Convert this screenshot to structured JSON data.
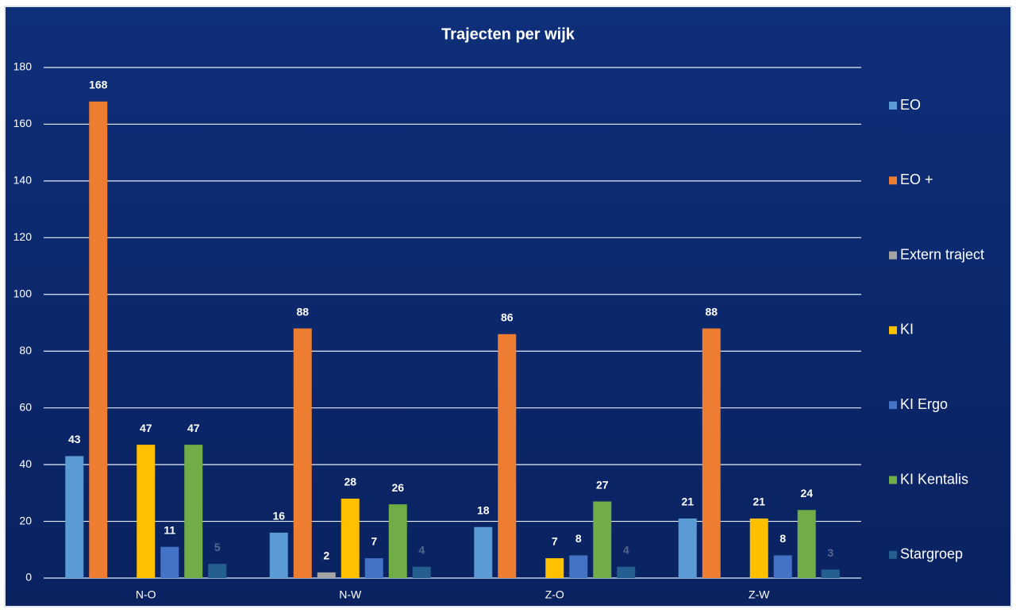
{
  "chart_data": {
    "type": "bar",
    "title": "Trajecten per wijk",
    "categories": [
      "N-O",
      "N-W",
      "Z-O",
      "Z-W"
    ],
    "series": [
      {
        "name": "EO",
        "color": "#5b9bd5",
        "values": [
          43,
          16,
          18,
          21
        ]
      },
      {
        "name": "EO +",
        "color": "#ed7d31",
        "values": [
          168,
          88,
          86,
          88
        ]
      },
      {
        "name": "Extern traject",
        "color": "#a5a5a5",
        "values": [
          null,
          2,
          null,
          null
        ]
      },
      {
        "name": "KI",
        "color": "#ffc000",
        "values": [
          47,
          28,
          7,
          21
        ]
      },
      {
        "name": "KI Ergo",
        "color": "#4472c4",
        "values": [
          11,
          7,
          8,
          8
        ]
      },
      {
        "name": "KI Kentalis",
        "color": "#70ad47",
        "values": [
          47,
          26,
          27,
          24
        ]
      },
      {
        "name": "Stargroep",
        "color": "#255e91",
        "values": [
          5,
          4,
          4,
          3
        ]
      }
    ],
    "ylim": [
      0,
      180
    ],
    "yticks": [
      0,
      20,
      40,
      60,
      80,
      100,
      120,
      140,
      160,
      180
    ],
    "grid": true,
    "legend": "right"
  }
}
